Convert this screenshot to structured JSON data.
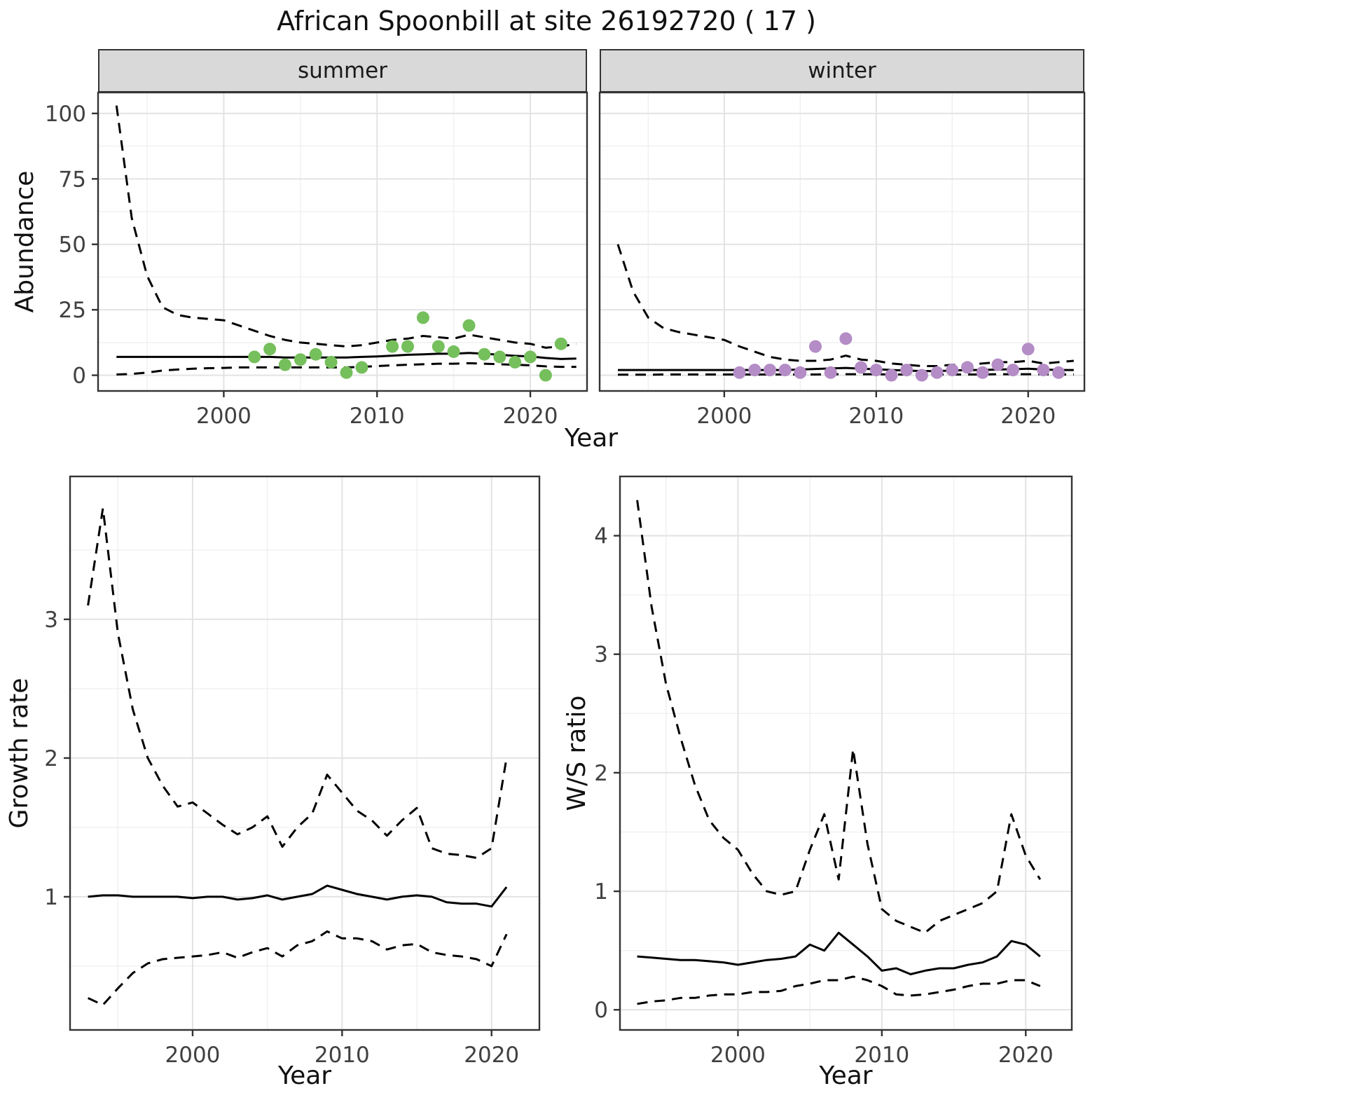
{
  "chart_data": [
    {
      "id": "abundance",
      "type": "line",
      "title": "African Spoonbill at site 26192720 ( 17 )",
      "xlabel": "Year",
      "ylabel": "Abundance",
      "xticks": [
        2000,
        2010,
        2020
      ],
      "yticks": [
        0,
        25,
        50,
        75,
        100
      ],
      "xlim": [
        1991.8,
        2023.7
      ],
      "ylim": [
        -6,
        108
      ],
      "grid": true,
      "legend_position": "none",
      "line_color": "#000000",
      "facets": [
        {
          "label": "summer",
          "point_color": "#75bf5c",
          "years": [
            1993,
            1994,
            1995,
            1996,
            1997,
            1998,
            1999,
            2000,
            2001,
            2002,
            2003,
            2004,
            2005,
            2006,
            2007,
            2008,
            2009,
            2010,
            2011,
            2012,
            2013,
            2014,
            2015,
            2016,
            2017,
            2018,
            2019,
            2020,
            2021,
            2022,
            2023
          ],
          "fit": [
            7,
            7,
            7,
            7,
            7,
            7,
            7,
            7,
            7,
            7,
            7,
            6.8,
            6.8,
            6.8,
            6.8,
            6.8,
            7,
            7.2,
            7.5,
            7.8,
            8,
            8.2,
            8.2,
            8.5,
            8.2,
            7.8,
            7.4,
            7.2,
            6.6,
            6.2,
            6.4
          ],
          "upper": [
            103,
            60,
            38,
            26,
            23,
            22,
            21.5,
            21,
            19,
            17,
            15,
            13.5,
            12.5,
            12,
            11.5,
            11,
            11.5,
            12.5,
            13.5,
            14,
            15,
            14.5,
            14,
            15.5,
            14.5,
            13.5,
            12.5,
            12,
            10.5,
            11,
            12
          ],
          "lower": [
            0.3,
            0.5,
            1,
            1.8,
            2.2,
            2.5,
            2.7,
            2.8,
            3,
            3,
            3,
            3,
            3,
            3,
            3,
            3,
            3.2,
            3.5,
            3.8,
            4,
            4.2,
            4.4,
            4.4,
            4.6,
            4.4,
            4.2,
            4,
            3.8,
            3.4,
            3.2,
            3.2
          ],
          "obs_years": [
            2002,
            2003,
            2004,
            2005,
            2006,
            2007,
            2008,
            2009,
            2011,
            2012,
            2013,
            2014,
            2015,
            2016,
            2017,
            2018,
            2019,
            2020,
            2021,
            2022
          ],
          "obs_values": [
            7,
            10,
            4,
            6,
            8,
            5,
            1,
            3,
            11,
            11,
            22,
            11,
            9,
            19,
            8,
            7,
            5,
            7,
            0,
            12
          ]
        },
        {
          "label": "winter",
          "point_color": "#b48cc6",
          "years": [
            1993,
            1994,
            1995,
            1996,
            1997,
            1998,
            1999,
            2000,
            2001,
            2002,
            2003,
            2004,
            2005,
            2006,
            2007,
            2008,
            2009,
            2010,
            2011,
            2012,
            2013,
            2014,
            2015,
            2016,
            2017,
            2018,
            2019,
            2020,
            2021,
            2022,
            2023
          ],
          "fit": [
            2,
            2,
            2,
            2,
            2,
            2,
            2,
            2,
            2,
            2,
            2,
            2,
            2.2,
            2.4,
            2.6,
            2.8,
            2.5,
            2.3,
            2,
            1.8,
            1.6,
            1.6,
            1.8,
            2,
            2,
            2.2,
            2.3,
            2.5,
            2.2,
            2,
            2
          ],
          "upper": [
            50,
            32,
            22,
            18,
            16.5,
            15.5,
            14.5,
            13.5,
            11,
            9,
            7,
            6,
            5.5,
            5.5,
            6,
            7.5,
            6,
            5.5,
            4.5,
            4,
            3.5,
            3.5,
            4,
            4,
            4.5,
            5,
            5,
            5.5,
            4.5,
            5,
            5.5
          ],
          "lower": [
            0.2,
            0.2,
            0.2,
            0.3,
            0.3,
            0.3,
            0.3,
            0.3,
            0.3,
            0.3,
            0.3,
            0.3,
            0.3,
            0.3,
            0.4,
            0.4,
            0.4,
            0.4,
            0.3,
            0.3,
            0.3,
            0.3,
            0.3,
            0.3,
            0.3,
            0.4,
            0.4,
            0.4,
            0.4,
            0.3,
            0.3
          ],
          "obs_years": [
            2001,
            2002,
            2003,
            2004,
            2005,
            2006,
            2007,
            2008,
            2009,
            2010,
            2011,
            2012,
            2013,
            2014,
            2015,
            2016,
            2017,
            2018,
            2019,
            2020,
            2021,
            2022
          ],
          "obs_values": [
            1,
            2,
            2,
            2,
            1,
            11,
            1,
            14,
            3,
            2,
            0,
            2,
            0,
            1,
            2,
            3,
            1,
            4,
            2,
            10,
            2,
            1
          ]
        }
      ]
    },
    {
      "id": "growth_rate",
      "type": "line",
      "xlabel": "Year",
      "ylabel": "Growth rate",
      "xticks": [
        2000,
        2010,
        2020
      ],
      "yticks": [
        1,
        2,
        3
      ],
      "xlim": [
        1991.8,
        2023.2
      ],
      "ylim": [
        0.04,
        4.03
      ],
      "grid": true,
      "line_color": "#000000",
      "years": [
        1993,
        1994,
        1995,
        1996,
        1997,
        1998,
        1999,
        2000,
        2001,
        2002,
        2003,
        2004,
        2005,
        2006,
        2007,
        2008,
        2009,
        2010,
        2011,
        2012,
        2013,
        2014,
        2015,
        2016,
        2017,
        2018,
        2019,
        2020,
        2021
      ],
      "fit": [
        1.0,
        1.01,
        1.01,
        1.0,
        1.0,
        1.0,
        1.0,
        0.99,
        1.0,
        1.0,
        0.98,
        0.99,
        1.01,
        0.98,
        1.0,
        1.02,
        1.08,
        1.05,
        1.02,
        1.0,
        0.98,
        1.0,
        1.01,
        1.0,
        0.96,
        0.95,
        0.95,
        0.93,
        1.07
      ],
      "upper": [
        3.1,
        3.8,
        2.9,
        2.35,
        2.0,
        1.8,
        1.65,
        1.68,
        1.6,
        1.52,
        1.45,
        1.5,
        1.58,
        1.36,
        1.5,
        1.6,
        1.88,
        1.75,
        1.62,
        1.55,
        1.44,
        1.55,
        1.64,
        1.35,
        1.31,
        1.3,
        1.28,
        1.35,
        2.0
      ],
      "lower": [
        0.27,
        0.22,
        0.34,
        0.45,
        0.52,
        0.55,
        0.56,
        0.57,
        0.58,
        0.6,
        0.56,
        0.6,
        0.63,
        0.57,
        0.65,
        0.68,
        0.75,
        0.7,
        0.7,
        0.68,
        0.62,
        0.65,
        0.66,
        0.6,
        0.58,
        0.57,
        0.55,
        0.5,
        0.73
      ]
    },
    {
      "id": "ws_ratio",
      "type": "line",
      "xlabel": "Year",
      "ylabel": "W/S ratio",
      "xticks": [
        2000,
        2010,
        2020
      ],
      "yticks": [
        0,
        1,
        2,
        3,
        4
      ],
      "xlim": [
        1991.8,
        2023.2
      ],
      "ylim": [
        -0.17,
        4.5
      ],
      "grid": true,
      "line_color": "#000000",
      "years": [
        1993,
        1994,
        1995,
        1996,
        1997,
        1998,
        1999,
        2000,
        2001,
        2002,
        2003,
        2004,
        2005,
        2006,
        2007,
        2008,
        2009,
        2010,
        2011,
        2012,
        2013,
        2014,
        2015,
        2016,
        2017,
        2018,
        2019,
        2020,
        2021
      ],
      "fit": [
        0.45,
        0.44,
        0.43,
        0.42,
        0.42,
        0.41,
        0.4,
        0.38,
        0.4,
        0.42,
        0.43,
        0.45,
        0.55,
        0.5,
        0.65,
        0.55,
        0.45,
        0.33,
        0.35,
        0.3,
        0.33,
        0.35,
        0.35,
        0.38,
        0.4,
        0.45,
        0.58,
        0.55,
        0.45
      ],
      "upper": [
        4.3,
        3.4,
        2.75,
        2.3,
        1.9,
        1.6,
        1.45,
        1.35,
        1.15,
        1.0,
        0.97,
        1.0,
        1.35,
        1.65,
        1.1,
        2.2,
        1.4,
        0.85,
        0.75,
        0.7,
        0.65,
        0.75,
        0.8,
        0.85,
        0.9,
        1.0,
        1.65,
        1.3,
        1.1
      ],
      "lower": [
        0.05,
        0.07,
        0.08,
        0.1,
        0.1,
        0.12,
        0.13,
        0.13,
        0.15,
        0.15,
        0.16,
        0.2,
        0.22,
        0.25,
        0.25,
        0.28,
        0.25,
        0.2,
        0.13,
        0.12,
        0.13,
        0.15,
        0.17,
        0.2,
        0.22,
        0.22,
        0.25,
        0.25,
        0.2
      ]
    }
  ]
}
